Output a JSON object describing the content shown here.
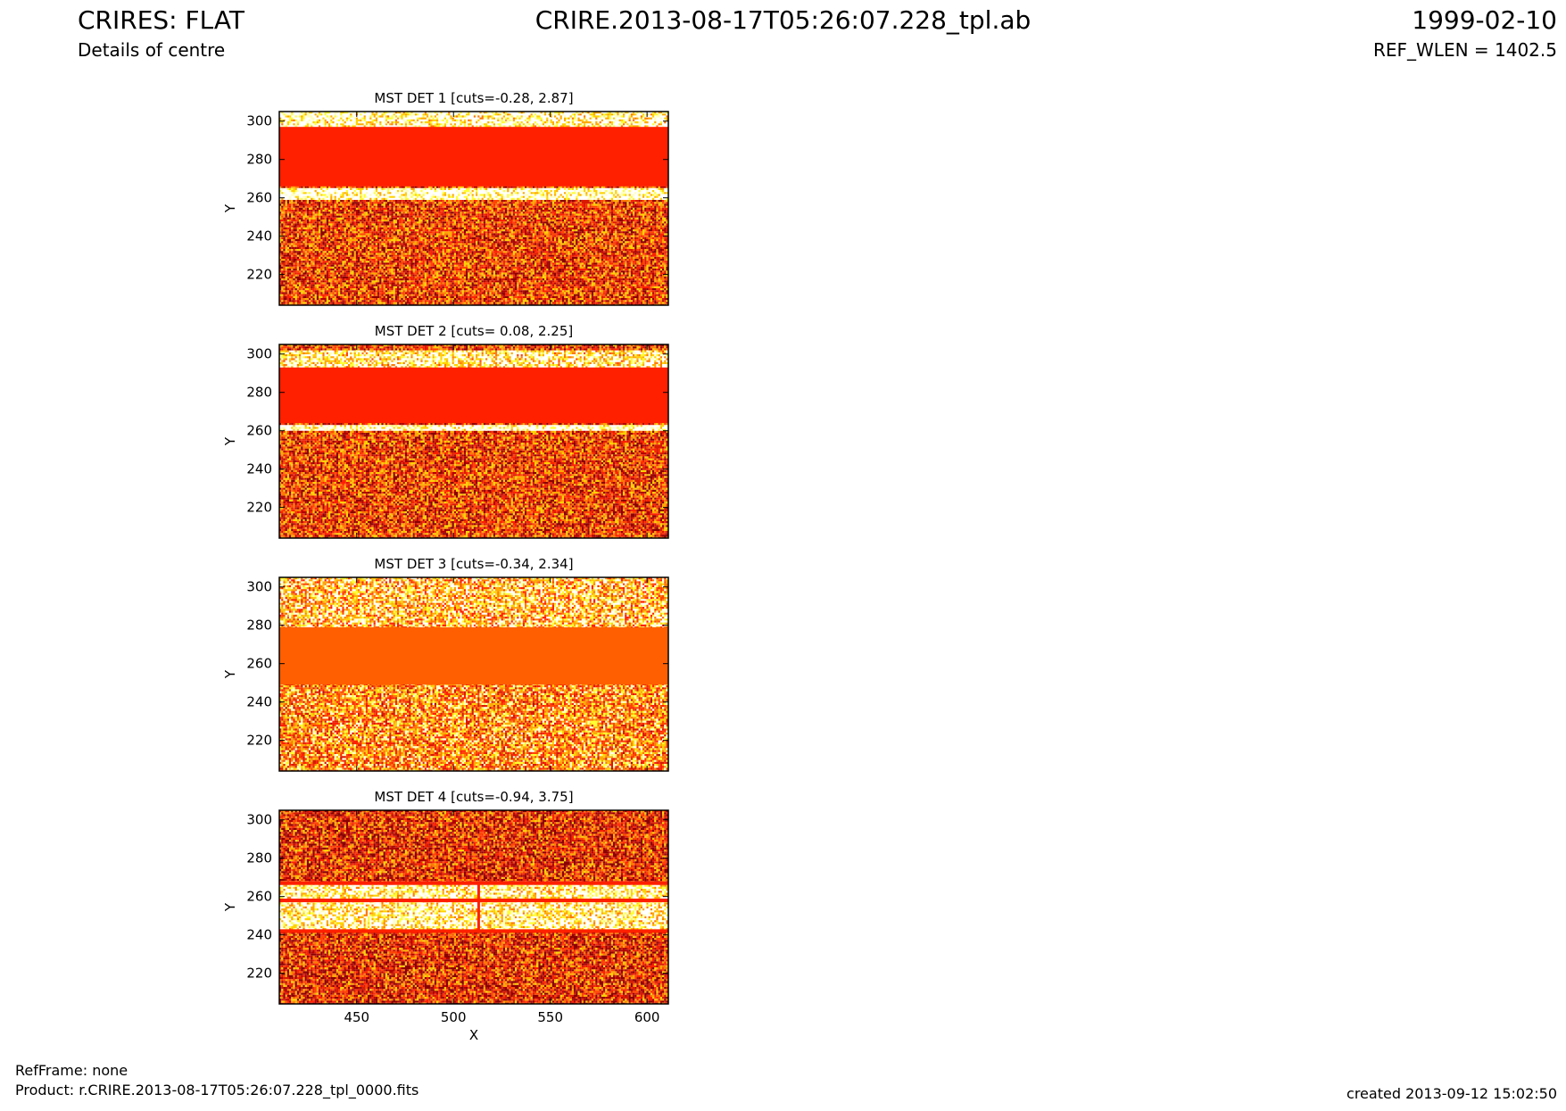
{
  "header": {
    "title": "CRIRES: FLAT",
    "subtitle": "Details of centre",
    "file": "CRIRE.2013-08-17T05:26:07.228_tpl.ab",
    "date": "1999-02-10",
    "ref_wlen": "REF_WLEN = 1402.5"
  },
  "footer": {
    "refframe": "RefFrame: none",
    "product": "Product: r.CRIRE.2013-08-17T05:26:07.228_tpl_0000.fits",
    "created": "created 2013-09-12 15:02:50"
  },
  "colors": {
    "band_red": "#ff2000",
    "band_orange": "#ff5f00",
    "frame": "#000000"
  },
  "chart_data": [
    {
      "type": "heatmap",
      "title": "MST DET 1 [cuts=-0.28, 2.87]",
      "xlabel": "",
      "ylabel": "Y",
      "xlim": [
        410,
        611
      ],
      "ylim": [
        204,
        305
      ],
      "xticks": [],
      "yticks": [
        220,
        240,
        260,
        280,
        300
      ],
      "colormap": "hot",
      "bright_band": {
        "y_range": [
          266,
          297
        ],
        "color": "#ff2000"
      },
      "gap_band": {
        "y_range": [
          259,
          266
        ]
      }
    },
    {
      "type": "heatmap",
      "title": "MST DET 2 [cuts= 0.08, 2.25]",
      "xlabel": "",
      "ylabel": "Y",
      "xlim": [
        410,
        611
      ],
      "ylim": [
        204,
        305
      ],
      "xticks": [],
      "yticks": [
        220,
        240,
        260,
        280,
        300
      ],
      "colormap": "hot",
      "bright_band": {
        "y_range": [
          264,
          293
        ],
        "color": "#ff2000"
      },
      "gap_band": {
        "y_range": [
          260,
          264
        ]
      },
      "top_gap": {
        "y_range": [
          293,
          302
        ]
      }
    },
    {
      "type": "heatmap",
      "title": "MST DET 3 [cuts=-0.34, 2.34]",
      "xlabel": "",
      "ylabel": "Y",
      "xlim": [
        410,
        611
      ],
      "ylim": [
        204,
        305
      ],
      "xticks": [],
      "yticks": [
        220,
        240,
        260,
        280,
        300
      ],
      "colormap": "hot",
      "bright_band": {
        "y_range": [
          249,
          279
        ],
        "color": "#ff5f00"
      }
    },
    {
      "type": "heatmap",
      "title": "MST DET 4 [cuts=-0.94, 3.75]",
      "xlabel": "X",
      "ylabel": "Y",
      "xlim": [
        410,
        611
      ],
      "ylim": [
        204,
        305
      ],
      "xticks": [
        450,
        500,
        550,
        600
      ],
      "yticks": [
        220,
        240,
        260,
        280,
        300
      ],
      "colormap": "hot",
      "gap_band": {
        "y_range": [
          242,
          267
        ]
      },
      "lines_y": [
        242,
        258,
        267
      ],
      "line_x": {
        "x": 513,
        "y_range": [
          242,
          267
        ]
      }
    }
  ]
}
